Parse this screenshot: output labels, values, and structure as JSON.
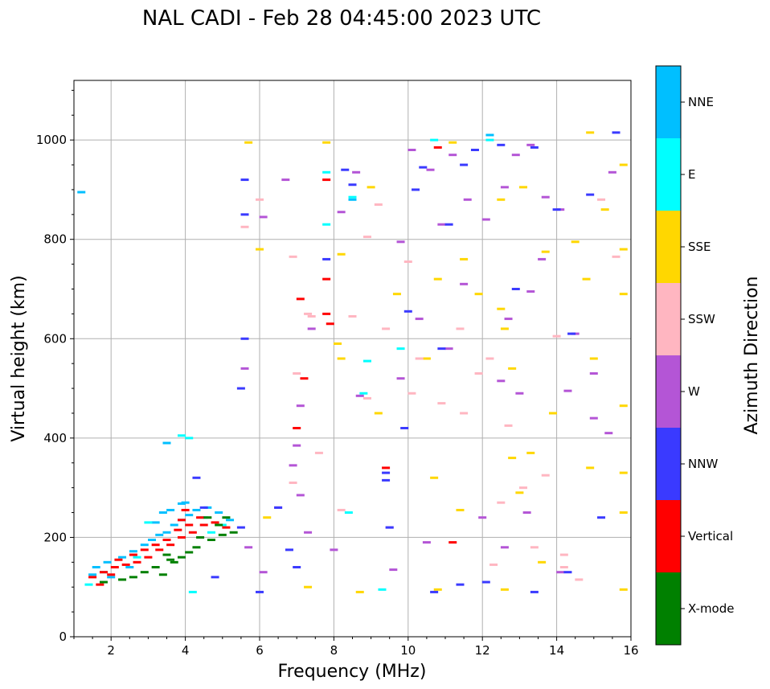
{
  "chart_data": {
    "type": "scatter",
    "title": "NAL CADI - Feb 28 04:45:00 2023 UTC",
    "xlabel": "Frequency (MHz)",
    "ylabel": "Virtual height (km)",
    "xlim": [
      1,
      16
    ],
    "ylim": [
      0,
      1120
    ],
    "xticks": [
      2,
      4,
      6,
      8,
      10,
      12,
      14,
      16
    ],
    "yticks": [
      0,
      200,
      400,
      600,
      800,
      1000
    ],
    "grid": true,
    "colorbar": {
      "label": "Azimuth Direction",
      "categories": [
        {
          "name": "X-mode",
          "color": "#008000"
        },
        {
          "name": "Vertical",
          "color": "#ff0000"
        },
        {
          "name": "NNW",
          "color": "#3a3aff"
        },
        {
          "name": "W",
          "color": "#b455d6"
        },
        {
          "name": "SSW",
          "color": "#ffb6c1"
        },
        {
          "name": "SSE",
          "color": "#ffd700"
        },
        {
          "name": "E",
          "color": "#00ffff"
        },
        {
          "name": "NNE",
          "color": "#00bfff"
        }
      ]
    },
    "series": [
      {
        "name": "NNE",
        "points": [
          [
            1.2,
            895
          ],
          [
            1.6,
            140
          ],
          [
            1.9,
            150
          ],
          [
            2.3,
            160
          ],
          [
            2.6,
            172
          ],
          [
            2.9,
            185
          ],
          [
            3.1,
            195
          ],
          [
            3.3,
            205
          ],
          [
            3.5,
            210
          ],
          [
            3.7,
            225
          ],
          [
            3.9,
            235
          ],
          [
            4.1,
            245
          ],
          [
            4.3,
            255
          ],
          [
            4.6,
            260
          ],
          [
            4.9,
            250
          ],
          [
            5.2,
            235
          ],
          [
            3.2,
            230
          ],
          [
            3.4,
            250
          ],
          [
            3.6,
            255
          ],
          [
            3.9,
            268
          ],
          [
            4.0,
            270
          ],
          [
            3.5,
            390
          ],
          [
            1.5,
            125
          ],
          [
            2.0,
            120
          ],
          [
            2.5,
            140
          ],
          [
            8.5,
            880
          ],
          [
            12.2,
            1010
          ]
        ]
      },
      {
        "name": "E",
        "points": [
          [
            4.2,
            90
          ],
          [
            3.9,
            405
          ],
          [
            4.1,
            400
          ],
          [
            7.8,
            935
          ],
          [
            8.5,
            885
          ],
          [
            9.3,
            95
          ],
          [
            9.8,
            580
          ],
          [
            8.9,
            555
          ],
          [
            8.8,
            490
          ],
          [
            7.8,
            830
          ],
          [
            8.4,
            250
          ],
          [
            12.2,
            1000
          ],
          [
            10.7,
            1000
          ],
          [
            3.0,
            230
          ],
          [
            4.5,
            240
          ],
          [
            5.0,
            225
          ],
          [
            4.7,
            210
          ],
          [
            1.4,
            105
          ],
          [
            1.8,
            130
          ],
          [
            2.7,
            160
          ]
        ]
      },
      {
        "name": "SSE",
        "points": [
          [
            5.7,
            995
          ],
          [
            6.0,
            780
          ],
          [
            7.8,
            995
          ],
          [
            8.2,
            770
          ],
          [
            9.0,
            905
          ],
          [
            9.7,
            690
          ],
          [
            10.5,
            560
          ],
          [
            10.8,
            95
          ],
          [
            11.2,
            995
          ],
          [
            11.9,
            690
          ],
          [
            12.5,
            880
          ],
          [
            12.8,
            540
          ],
          [
            13.3,
            370
          ],
          [
            14.5,
            795
          ],
          [
            14.9,
            1015
          ],
          [
            15.3,
            860
          ],
          [
            15.8,
            950
          ],
          [
            15.8,
            780
          ],
          [
            15.8,
            690
          ],
          [
            15.8,
            465
          ],
          [
            15.8,
            330
          ],
          [
            15.8,
            250
          ],
          [
            15.8,
            95
          ],
          [
            6.2,
            240
          ],
          [
            7.3,
            100
          ],
          [
            8.7,
            90
          ],
          [
            9.2,
            450
          ],
          [
            10.7,
            320
          ],
          [
            11.4,
            255
          ],
          [
            12.6,
            95
          ],
          [
            13.0,
            290
          ],
          [
            13.6,
            150
          ],
          [
            14.8,
            720
          ],
          [
            15.0,
            560
          ],
          [
            14.9,
            340
          ],
          [
            12.5,
            660
          ],
          [
            12.6,
            620
          ],
          [
            13.1,
            905
          ],
          [
            13.7,
            775
          ],
          [
            8.2,
            560
          ],
          [
            8.1,
            590
          ],
          [
            10.8,
            720
          ],
          [
            11.5,
            760
          ],
          [
            12.8,
            360
          ],
          [
            13.9,
            450
          ]
        ]
      },
      {
        "name": "SSW",
        "points": [
          [
            5.6,
            825
          ],
          [
            6.0,
            880
          ],
          [
            6.9,
            765
          ],
          [
            7.4,
            645
          ],
          [
            7.6,
            370
          ],
          [
            8.2,
            255
          ],
          [
            8.5,
            645
          ],
          [
            8.9,
            805
          ],
          [
            9.2,
            870
          ],
          [
            10.0,
            755
          ],
          [
            10.3,
            560
          ],
          [
            10.9,
            470
          ],
          [
            11.4,
            620
          ],
          [
            12.2,
            560
          ],
          [
            12.7,
            425
          ],
          [
            13.1,
            300
          ],
          [
            13.4,
            180
          ],
          [
            14.0,
            605
          ],
          [
            14.2,
            140
          ],
          [
            14.6,
            115
          ],
          [
            15.2,
            880
          ],
          [
            15.6,
            765
          ],
          [
            6.9,
            310
          ],
          [
            7.3,
            650
          ],
          [
            7.0,
            530
          ],
          [
            9.4,
            620
          ],
          [
            11.5,
            450
          ],
          [
            12.5,
            270
          ],
          [
            13.7,
            325
          ],
          [
            14.2,
            165
          ],
          [
            7.8,
            920
          ],
          [
            8.9,
            480
          ],
          [
            10.1,
            490
          ],
          [
            11.9,
            530
          ],
          [
            12.3,
            145
          ]
        ]
      },
      {
        "name": "W",
        "points": [
          [
            5.6,
            540
          ],
          [
            6.1,
            845
          ],
          [
            6.7,
            920
          ],
          [
            7.0,
            385
          ],
          [
            7.1,
            285
          ],
          [
            7.4,
            620
          ],
          [
            8.2,
            855
          ],
          [
            8.6,
            935
          ],
          [
            9.5,
            220
          ],
          [
            9.8,
            795
          ],
          [
            10.1,
            980
          ],
          [
            10.6,
            940
          ],
          [
            10.9,
            830
          ],
          [
            11.2,
            970
          ],
          [
            11.6,
            880
          ],
          [
            12.1,
            840
          ],
          [
            12.6,
            905
          ],
          [
            12.9,
            970
          ],
          [
            13.3,
            990
          ],
          [
            13.7,
            885
          ],
          [
            14.1,
            860
          ],
          [
            14.5,
            610
          ],
          [
            15.0,
            530
          ],
          [
            15.5,
            935
          ],
          [
            15.4,
            410
          ],
          [
            14.1,
            130
          ],
          [
            13.3,
            695
          ],
          [
            12.6,
            180
          ],
          [
            12.0,
            240
          ],
          [
            11.1,
            580
          ],
          [
            10.3,
            640
          ],
          [
            9.8,
            520
          ],
          [
            8.7,
            485
          ],
          [
            8.0,
            175
          ],
          [
            7.3,
            210
          ],
          [
            6.9,
            345
          ],
          [
            6.5,
            260
          ],
          [
            5.7,
            180
          ],
          [
            7.1,
            465
          ],
          [
            13.0,
            490
          ],
          [
            14.3,
            495
          ],
          [
            12.5,
            515
          ],
          [
            13.2,
            250
          ],
          [
            11.5,
            710
          ],
          [
            10.5,
            190
          ],
          [
            9.6,
            135
          ],
          [
            12.7,
            640
          ],
          [
            15.0,
            440
          ],
          [
            13.6,
            760
          ],
          [
            6.1,
            130
          ]
        ]
      },
      {
        "name": "NNW",
        "points": [
          [
            5.6,
            920
          ],
          [
            5.6,
            850
          ],
          [
            5.6,
            600
          ],
          [
            5.5,
            500
          ],
          [
            4.3,
            320
          ],
          [
            6.8,
            175
          ],
          [
            7.8,
            760
          ],
          [
            8.5,
            910
          ],
          [
            9.4,
            330
          ],
          [
            9.4,
            315
          ],
          [
            9.9,
            420
          ],
          [
            10.4,
            945
          ],
          [
            11.1,
            830
          ],
          [
            11.5,
            950
          ],
          [
            10.9,
            580
          ],
          [
            12.5,
            990
          ],
          [
            12.9,
            700
          ],
          [
            13.4,
            985
          ],
          [
            14.0,
            860
          ],
          [
            14.4,
            610
          ],
          [
            14.9,
            890
          ],
          [
            15.2,
            240
          ],
          [
            15.6,
            1015
          ],
          [
            10.7,
            90
          ],
          [
            11.4,
            105
          ],
          [
            12.1,
            110
          ],
          [
            13.4,
            90
          ],
          [
            14.3,
            130
          ],
          [
            10.0,
            655
          ],
          [
            9.5,
            220
          ],
          [
            11.8,
            980
          ],
          [
            6.5,
            260
          ],
          [
            6.0,
            90
          ],
          [
            4.5,
            260
          ],
          [
            4.8,
            120
          ],
          [
            5.5,
            220
          ],
          [
            7.0,
            140
          ],
          [
            8.3,
            940
          ],
          [
            10.2,
            900
          ]
        ]
      },
      {
        "name": "Vertical",
        "points": [
          [
            1.5,
            120
          ],
          [
            1.8,
            130
          ],
          [
            2.1,
            140
          ],
          [
            2.4,
            145
          ],
          [
            2.7,
            150
          ],
          [
            3.0,
            160
          ],
          [
            3.3,
            175
          ],
          [
            3.6,
            185
          ],
          [
            3.9,
            200
          ],
          [
            4.2,
            210
          ],
          [
            4.5,
            225
          ],
          [
            4.8,
            230
          ],
          [
            5.1,
            220
          ],
          [
            2.2,
            155
          ],
          [
            2.6,
            165
          ],
          [
            2.9,
            175
          ],
          [
            3.2,
            185
          ],
          [
            3.5,
            195
          ],
          [
            3.8,
            215
          ],
          [
            4.1,
            225
          ],
          [
            4.0,
            255
          ],
          [
            3.9,
            235
          ],
          [
            4.4,
            240
          ],
          [
            1.7,
            105
          ],
          [
            2.0,
            125
          ],
          [
            7.1,
            680
          ],
          [
            7.8,
            720
          ],
          [
            7.8,
            650
          ],
          [
            7.9,
            630
          ],
          [
            7.8,
            920
          ],
          [
            9.4,
            340
          ],
          [
            10.8,
            985
          ],
          [
            11.2,
            190
          ],
          [
            7.2,
            520
          ],
          [
            7.0,
            420
          ]
        ]
      },
      {
        "name": "X-mode",
        "points": [
          [
            2.3,
            115
          ],
          [
            2.6,
            120
          ],
          [
            2.9,
            130
          ],
          [
            3.2,
            140
          ],
          [
            3.6,
            155
          ],
          [
            3.9,
            160
          ],
          [
            4.3,
            180
          ],
          [
            4.7,
            195
          ],
          [
            5.0,
            205
          ],
          [
            5.3,
            210
          ],
          [
            4.6,
            240
          ],
          [
            4.9,
            225
          ],
          [
            3.4,
            125
          ],
          [
            3.7,
            150
          ],
          [
            4.1,
            170
          ],
          [
            5.1,
            240
          ],
          [
            1.8,
            110
          ],
          [
            4.4,
            200
          ],
          [
            3.5,
            165
          ]
        ]
      }
    ]
  }
}
